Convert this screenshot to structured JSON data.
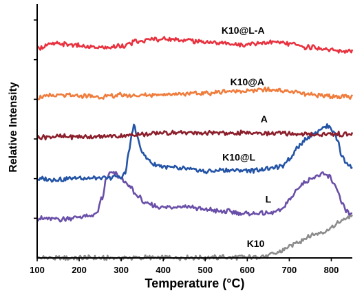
{
  "chart_data": {
    "type": "line",
    "title": "",
    "xlabel": "Temperature (°C)",
    "ylabel": "Relative Intensity",
    "xlim": [
      100,
      850
    ],
    "ylim": [
      0,
      6.4
    ],
    "xticks": [
      100,
      200,
      300,
      400,
      500,
      600,
      700,
      800
    ],
    "xtick_labels": [
      "100",
      "200",
      "300",
      "400",
      "500",
      "600",
      "700",
      "800"
    ],
    "yticks": [
      1,
      2,
      3,
      4,
      5,
      6
    ],
    "grid": false,
    "legend": "none",
    "series": [
      {
        "name": "K10",
        "color": "#8c8c8c",
        "label_at": [
          620,
          0.28
        ],
        "x": [
          100,
          200,
          300,
          400,
          500,
          600,
          640,
          660,
          680,
          700,
          720,
          740,
          760,
          780,
          800,
          820,
          840,
          850
        ],
        "y": [
          0.0,
          0.0,
          0.0,
          0.01,
          0.01,
          0.02,
          0.04,
          0.09,
          0.17,
          0.28,
          0.4,
          0.5,
          0.6,
          0.66,
          0.75,
          0.9,
          1.03,
          1.08
        ]
      },
      {
        "name": "L",
        "color": "#6a4fa8",
        "label_at": [
          650,
          1.4
        ],
        "x": [
          100,
          150,
          200,
          220,
          240,
          255,
          265,
          275,
          285,
          300,
          320,
          340,
          360,
          400,
          450,
          500,
          550,
          600,
          650,
          680,
          700,
          720,
          740,
          760,
          780,
          795,
          805,
          815,
          825,
          835,
          845,
          850
        ],
        "y": [
          1.0,
          0.97,
          1.03,
          1.05,
          1.1,
          1.5,
          2.0,
          2.15,
          2.12,
          2.0,
          1.8,
          1.55,
          1.35,
          1.28,
          1.3,
          1.22,
          1.17,
          1.12,
          1.12,
          1.2,
          1.45,
          1.75,
          1.95,
          2.05,
          2.1,
          2.05,
          1.9,
          1.7,
          1.4,
          1.2,
          1.1,
          1.08
        ]
      },
      {
        "name": "K10@L",
        "color": "#2454a6",
        "label_at": [
          580,
          2.45
        ],
        "x": [
          100,
          150,
          200,
          250,
          300,
          310,
          318,
          325,
          330,
          335,
          340,
          350,
          360,
          380,
          400,
          450,
          500,
          550,
          600,
          650,
          680,
          700,
          720,
          740,
          760,
          780,
          795,
          805,
          815,
          825,
          835,
          845,
          850
        ],
        "y": [
          2.0,
          1.98,
          2.02,
          2.0,
          2.05,
          2.15,
          2.65,
          3.1,
          3.35,
          3.2,
          2.95,
          2.7,
          2.5,
          2.35,
          2.3,
          2.25,
          2.18,
          2.22,
          2.2,
          2.25,
          2.3,
          2.5,
          2.8,
          3.0,
          3.15,
          3.28,
          3.32,
          3.2,
          2.95,
          2.6,
          2.4,
          2.33,
          2.32
        ]
      },
      {
        "name": "A",
        "color": "#8b1f2b",
        "label_at": [
          640,
          3.42
        ],
        "x": [
          100,
          150,
          200,
          250,
          300,
          350,
          400,
          450,
          500,
          550,
          600,
          650,
          700,
          750,
          800,
          850
        ],
        "y": [
          3.05,
          3.06,
          3.06,
          3.05,
          3.08,
          3.12,
          3.15,
          3.16,
          3.15,
          3.14,
          3.15,
          3.15,
          3.13,
          3.12,
          3.12,
          3.12
        ]
      },
      {
        "name": "K10@A",
        "color": "#f07c3c",
        "label_at": [
          600,
          4.35
        ],
        "x": [
          100,
          150,
          200,
          250,
          300,
          350,
          400,
          450,
          500,
          550,
          600,
          650,
          700,
          750,
          800,
          850
        ],
        "y": [
          4.05,
          4.1,
          4.08,
          4.06,
          4.1,
          4.1,
          4.12,
          4.14,
          4.15,
          4.2,
          4.22,
          4.24,
          4.2,
          4.12,
          4.08,
          4.06
        ]
      },
      {
        "name": "K10@L-A",
        "color": "#e8323f",
        "label_at": [
          590,
          5.65
        ],
        "x": [
          100,
          140,
          180,
          220,
          260,
          300,
          340,
          380,
          420,
          460,
          500,
          540,
          580,
          620,
          660,
          700,
          740,
          780,
          820,
          850
        ],
        "y": [
          5.3,
          5.4,
          5.38,
          5.32,
          5.3,
          5.35,
          5.45,
          5.52,
          5.52,
          5.48,
          5.45,
          5.42,
          5.38,
          5.42,
          5.45,
          5.4,
          5.32,
          5.28,
          5.22,
          5.2
        ]
      }
    ]
  }
}
